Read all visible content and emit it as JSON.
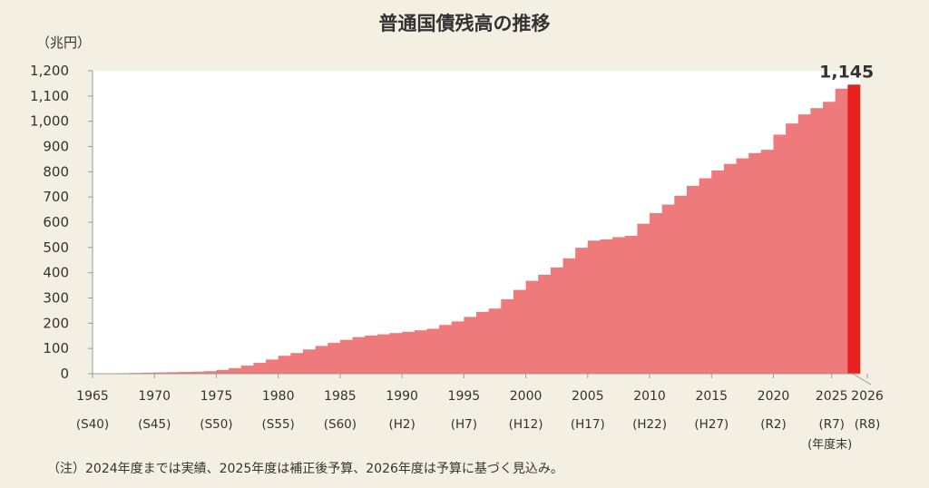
{
  "title": "普通国債残高の推移",
  "unit_label": "（兆円）",
  "note": "（注）2024年度までは実績、2025年度は補正後予算、2026年度は予算に基づく見込み。",
  "fiscal_year_end_label": "(年度末)",
  "colors": {
    "bars": "#ee7a7c",
    "last_bar": "#e8211f",
    "plot_bg": "#ffffff",
    "page_bg": "#f3efe3"
  },
  "chart_data": {
    "type": "bar",
    "title": "普通国債残高の推移",
    "ylabel": "（兆円）",
    "ylim": [
      0,
      1200
    ],
    "yticks": [
      0,
      100,
      200,
      300,
      400,
      500,
      600,
      700,
      800,
      900,
      1000,
      1100,
      1200
    ],
    "ytick_labels": [
      "0",
      "100",
      "200",
      "300",
      "400",
      "500",
      "600",
      "700",
      "800",
      "900",
      "1,000",
      "1,100",
      "1,200"
    ],
    "xticks": [
      {
        "year": "1965",
        "era": "(S40)"
      },
      {
        "year": "1970",
        "era": "(S45)"
      },
      {
        "year": "1975",
        "era": "(S50)"
      },
      {
        "year": "1980",
        "era": "(S55)"
      },
      {
        "year": "1985",
        "era": "(S60)"
      },
      {
        "year": "1990",
        "era": "(H2)"
      },
      {
        "year": "1995",
        "era": "(H7)"
      },
      {
        "year": "2000",
        "era": "(H12)"
      },
      {
        "year": "2005",
        "era": "(H17)"
      },
      {
        "year": "2010",
        "era": "(H22)"
      },
      {
        "year": "2015",
        "era": "(H27)"
      },
      {
        "year": "2020",
        "era": "(R2)"
      },
      {
        "year": "2025",
        "era": "(R7)"
      },
      {
        "year": "2026",
        "era": "(R8)"
      }
    ],
    "categories": [
      1965,
      1966,
      1967,
      1968,
      1969,
      1970,
      1971,
      1972,
      1973,
      1974,
      1975,
      1976,
      1977,
      1978,
      1979,
      1980,
      1981,
      1982,
      1983,
      1984,
      1985,
      1986,
      1987,
      1988,
      1989,
      1990,
      1991,
      1992,
      1993,
      1994,
      1995,
      1996,
      1997,
      1998,
      1999,
      2000,
      2001,
      2002,
      2003,
      2004,
      2005,
      2006,
      2007,
      2008,
      2009,
      2010,
      2011,
      2012,
      2013,
      2014,
      2015,
      2016,
      2017,
      2018,
      2019,
      2020,
      2021,
      2022,
      2023,
      2024,
      2025,
      2026
    ],
    "values": [
      0.2,
      1,
      2,
      3,
      4,
      5,
      6,
      7,
      8,
      10,
      15,
      22,
      32,
      43,
      56,
      71,
      82,
      96,
      110,
      122,
      134,
      145,
      151,
      156,
      161,
      166,
      172,
      178,
      193,
      207,
      225,
      245,
      258,
      295,
      332,
      368,
      392,
      421,
      457,
      499,
      527,
      532,
      541,
      546,
      594,
      636,
      670,
      705,
      744,
      774,
      805,
      831,
      853,
      874,
      887,
      947,
      991,
      1027,
      1052,
      1077,
      1129,
      1145
    ],
    "highlight": {
      "year": 2026,
      "value": 1145,
      "label": "1,145"
    }
  }
}
